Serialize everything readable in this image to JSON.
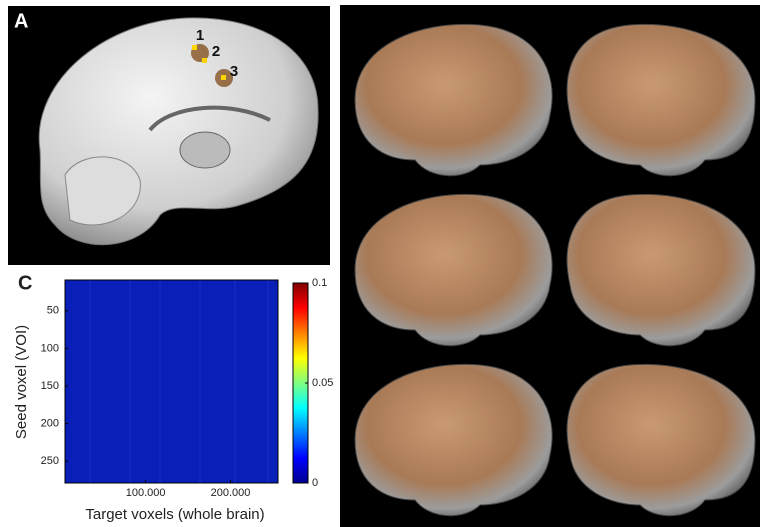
{
  "panel_a": {
    "label": "A",
    "markers": [
      "1",
      "2",
      "3"
    ]
  },
  "chart_data": {
    "type": "heatmap",
    "label": "C",
    "xlabel": "Target voxels (whole brain)",
    "ylabel": "Seed voxel (VOI)",
    "xlim": [
      5000,
      256000
    ],
    "xticks": [
      {
        "value": 100000,
        "label": "100.000"
      },
      {
        "value": 200000,
        "label": "200.000"
      }
    ],
    "ylim": [
      9,
      279
    ],
    "y_inverted": true,
    "yticks": [
      50,
      100,
      150,
      200,
      250
    ],
    "clim": [
      0,
      0.1
    ],
    "cticks": [
      0,
      0.05,
      0.1
    ],
    "colormap": "jet"
  }
}
